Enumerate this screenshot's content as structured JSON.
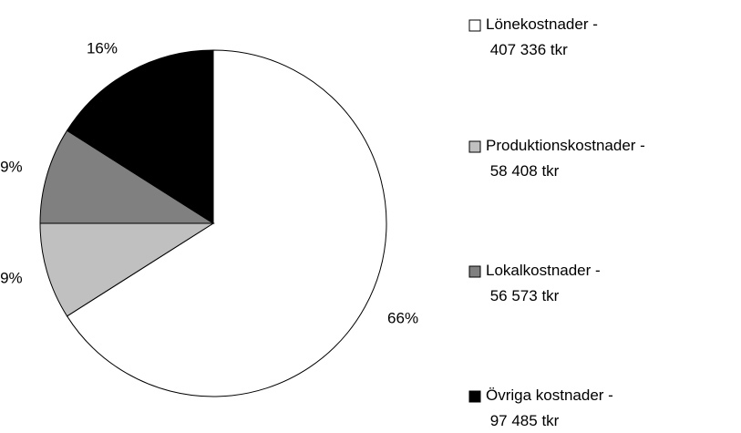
{
  "chart_data": {
    "type": "pie",
    "series": [
      {
        "name": "Lönekostnader - 407 336 tkr",
        "color": "#ffffff",
        "value": 66,
        "value_label": "66%"
      },
      {
        "name": "Produktionskostnader - 58 408 tkr",
        "color": "#c0c0c0",
        "value": 9,
        "value_label": "9%"
      },
      {
        "name": "Lokalkostnader - 56 573 tkr",
        "color": "#808080",
        "value": 9,
        "value_label": "9%"
      },
      {
        "name": "Övriga kostnader - 97 485 tkr",
        "color": "#000000",
        "value": 16,
        "value_label": "16%"
      }
    ],
    "legend": "right"
  }
}
